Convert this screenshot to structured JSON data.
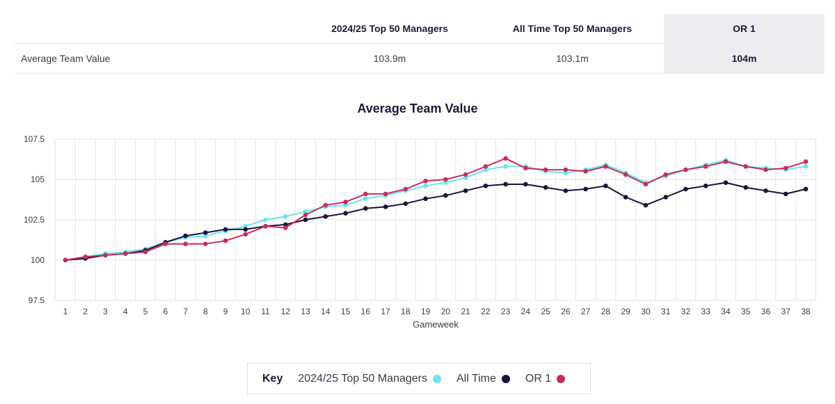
{
  "summary": {
    "headers": [
      "2024/25 Top 50 Managers",
      "All Time Top 50 Managers",
      "OR 1"
    ],
    "row_label": "Average Team Value",
    "values": [
      "103.9m",
      "103.1m",
      "104m"
    ]
  },
  "legend": {
    "key_label": "Key",
    "items": [
      {
        "label": "2024/25 Top 50 Managers",
        "color": "#6be3f0"
      },
      {
        "label": "All Time",
        "color": "#17133a"
      },
      {
        "label": "OR 1",
        "color": "#c2305e"
      }
    ]
  },
  "chart_data": {
    "type": "line",
    "title": "Average Team Value",
    "xlabel": "Gameweek",
    "ylabel": "",
    "x": [
      1,
      2,
      3,
      4,
      5,
      6,
      7,
      8,
      9,
      10,
      11,
      12,
      13,
      14,
      15,
      16,
      17,
      18,
      19,
      20,
      21,
      22,
      23,
      24,
      25,
      26,
      27,
      28,
      29,
      30,
      31,
      32,
      33,
      34,
      35,
      36,
      37,
      38
    ],
    "ylim": [
      97.5,
      107.5
    ],
    "yticks": [
      97.5,
      100,
      102.5,
      105,
      107.5
    ],
    "ytick_labels": [
      "97.5",
      "100",
      "102.5",
      "105",
      "107.5"
    ],
    "grid": true,
    "legend_position": "bottom",
    "series": [
      {
        "name": "2024/25 Top 50 Managers",
        "color": "#6be3f0",
        "values": [
          100.0,
          100.2,
          100.4,
          100.5,
          100.7,
          101.1,
          101.4,
          101.5,
          101.8,
          102.1,
          102.5,
          102.7,
          103.0,
          103.3,
          103.4,
          103.8,
          104.0,
          104.3,
          104.6,
          104.8,
          105.1,
          105.6,
          105.8,
          105.8,
          105.5,
          105.4,
          105.6,
          105.9,
          105.4,
          104.8,
          105.2,
          105.6,
          105.9,
          106.2,
          105.8,
          105.7,
          105.6,
          105.8
        ]
      },
      {
        "name": "All Time",
        "color": "#17133a",
        "values": [
          100.0,
          100.1,
          100.3,
          100.4,
          100.6,
          101.1,
          101.5,
          101.7,
          101.9,
          101.9,
          102.1,
          102.2,
          102.5,
          102.7,
          102.9,
          103.2,
          103.3,
          103.5,
          103.8,
          104.0,
          104.3,
          104.6,
          104.7,
          104.7,
          104.5,
          104.3,
          104.4,
          104.6,
          103.9,
          103.4,
          103.9,
          104.4,
          104.6,
          104.8,
          104.5,
          104.3,
          104.1,
          104.4
        ]
      },
      {
        "name": "OR 1",
        "color": "#c2305e",
        "values": [
          100.0,
          100.2,
          100.3,
          100.4,
          100.5,
          101.0,
          101.0,
          101.0,
          101.2,
          101.6,
          102.1,
          102.0,
          102.8,
          103.4,
          103.6,
          104.1,
          104.1,
          104.4,
          104.9,
          105.0,
          105.3,
          105.8,
          106.3,
          105.7,
          105.6,
          105.6,
          105.5,
          105.8,
          105.3,
          104.7,
          105.3,
          105.6,
          105.8,
          106.1,
          105.8,
          105.6,
          105.7,
          106.1
        ]
      }
    ]
  }
}
